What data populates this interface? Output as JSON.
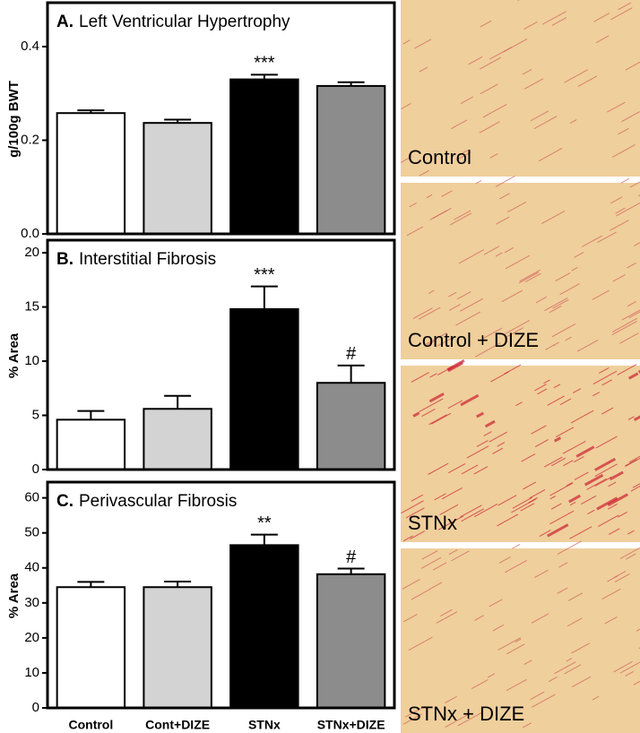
{
  "chart_data": [
    {
      "type": "bar",
      "panel": "A.",
      "title": "Left Ventricular Hypertrophy",
      "y_label": "g/100g BWT",
      "values": [
        0.258,
        0.237,
        0.33,
        0.316
      ],
      "errors": [
        0.006,
        0.007,
        0.01,
        0.008
      ],
      "annotations": [
        null,
        null,
        "***",
        null
      ],
      "colors": [
        "#ffffff",
        "#d3d3d3",
        "#000000",
        "#8c8c8c"
      ],
      "ylim": [
        0,
        0.49
      ],
      "yticks": [
        {
          "value": 0,
          "label": "0.0"
        },
        0.2,
        0.4
      ]
    },
    {
      "type": "bar",
      "panel": "B.",
      "title": "Interstitial Fibrosis",
      "y_label": "% Area",
      "values": [
        4.6,
        5.6,
        14.8,
        8.0
      ],
      "errors": [
        0.8,
        1.2,
        2.1,
        1.6
      ],
      "annotations": [
        null,
        null,
        "***",
        "#"
      ],
      "colors": [
        "#ffffff",
        "#d3d3d3",
        "#000000",
        "#8c8c8c"
      ],
      "ylim": [
        0,
        21
      ],
      "yticks": [
        0,
        5,
        10,
        15,
        20
      ]
    },
    {
      "type": "bar",
      "panel": "C.",
      "title": "Perivascular Fibrosis",
      "y_label": "% Area",
      "categories": [
        "Control",
        "Cont+DIZE",
        "STNx",
        "STNx+DIZE"
      ],
      "values": [
        34.5,
        34.5,
        46.5,
        38.2
      ],
      "errors": [
        1.5,
        1.6,
        3.0,
        1.6
      ],
      "annotations": [
        null,
        null,
        "**",
        "#"
      ],
      "colors": [
        "#ffffff",
        "#d3d3d3",
        "#000000",
        "#8c8c8c"
      ],
      "ylim": [
        0,
        64
      ],
      "yticks": [
        0,
        10,
        20,
        30,
        40,
        50,
        60
      ]
    }
  ],
  "image_labels": [
    "Control",
    "Control + DIZE",
    "STNx",
    "STNx + DIZE"
  ]
}
